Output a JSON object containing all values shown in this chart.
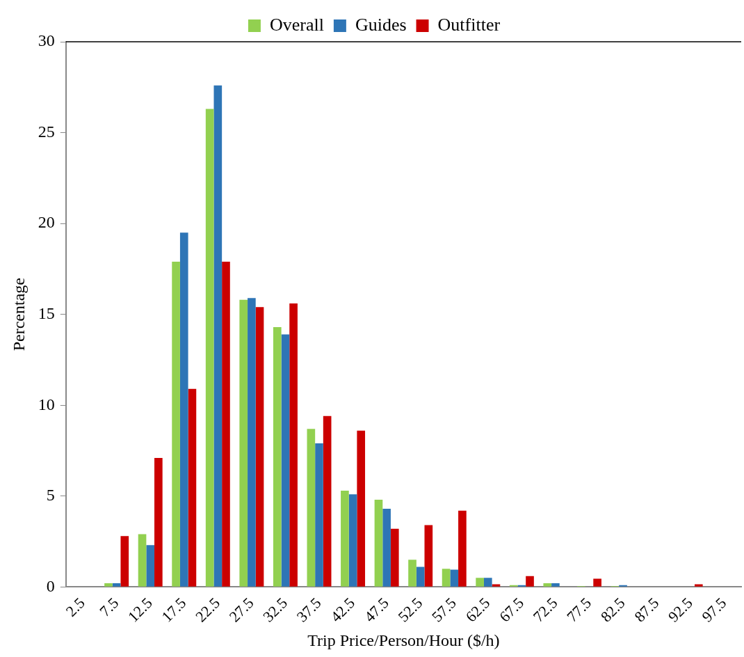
{
  "chart_data": {
    "type": "bar",
    "xlabel": "Trip Price/Person/Hour ($/h)",
    "ylabel": "Percentage",
    "categories": [
      "2.5",
      "7.5",
      "12.5",
      "17.5",
      "22.5",
      "27.5",
      "32.5",
      "37.5",
      "42.5",
      "47.5",
      "52.5",
      "57.5",
      "62.5",
      "67.5",
      "72.5",
      "77.5",
      "82.5",
      "87.5",
      "92.5",
      "97.5"
    ],
    "series": [
      {
        "name": "Overall",
        "color": "#92d050",
        "values": [
          0,
          0.2,
          2.9,
          17.9,
          26.3,
          15.8,
          14.3,
          8.7,
          5.3,
          4.8,
          1.5,
          1.0,
          0.5,
          0.1,
          0.2,
          0.05,
          0.05,
          0.02,
          0.02,
          0.02
        ]
      },
      {
        "name": "Guides",
        "color": "#2e75b6",
        "values": [
          0,
          0.2,
          2.3,
          19.5,
          27.6,
          15.9,
          13.9,
          7.9,
          5.1,
          4.3,
          1.1,
          0.95,
          0.5,
          0.1,
          0.2,
          0.02,
          0.1,
          0.02,
          0.02,
          0.02
        ]
      },
      {
        "name": "Outfitter",
        "color": "#cc0000",
        "values": [
          0,
          2.8,
          7.1,
          10.9,
          17.9,
          15.4,
          15.6,
          9.4,
          8.6,
          3.2,
          3.4,
          4.2,
          0.15,
          0.6,
          0,
          0.45,
          0,
          0,
          0.15,
          0
        ]
      }
    ],
    "ylim": [
      0,
      30
    ],
    "yticks": [
      0,
      5,
      10,
      15,
      20,
      25,
      30
    ],
    "grid": false,
    "legend": "top"
  }
}
